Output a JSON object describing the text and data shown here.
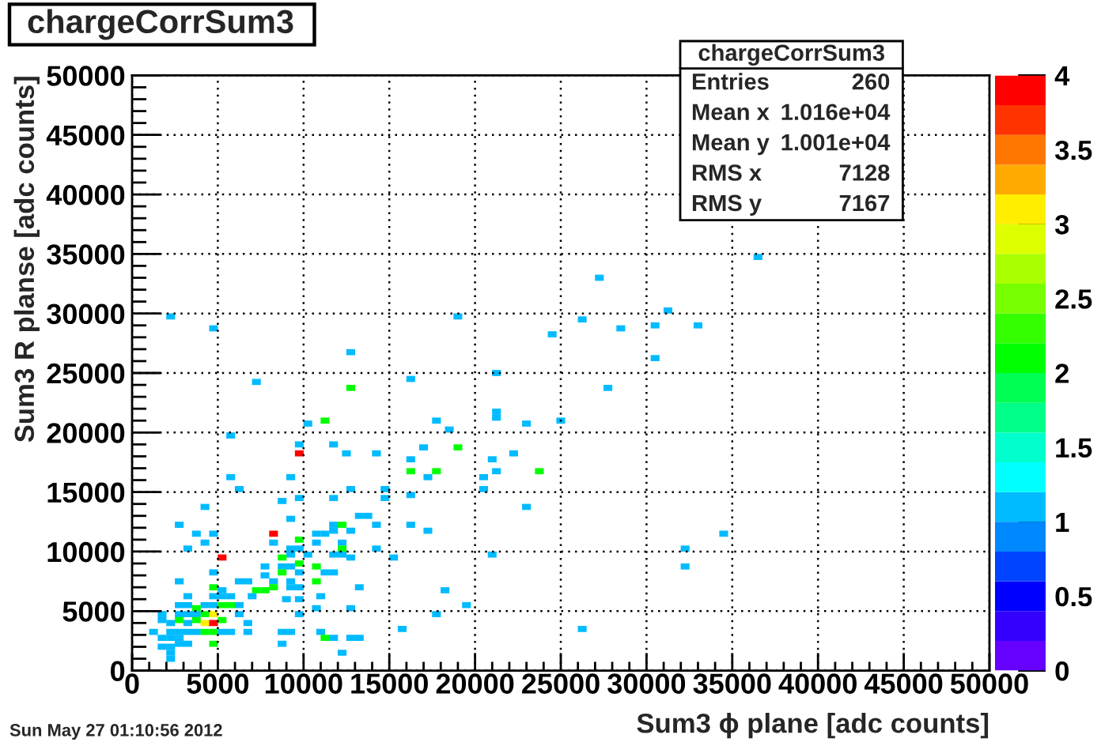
{
  "chart_data": {
    "type": "scatter",
    "title": "chargeCorrSum3",
    "xlabel": "Sum3 ϕ plane [adc counts]",
    "ylabel": "Sum3 R planse [adc counts]",
    "x": [
      2250,
      19000,
      4750,
      12750,
      7250,
      12750,
      16250,
      21250,
      21250,
      21250,
      11250,
      10250,
      17750,
      18500,
      23000,
      25000,
      27750,
      5750,
      9750,
      9750,
      11750,
      12500,
      14250,
      16250,
      17000,
      19000,
      21000,
      22250,
      16250,
      17750,
      17250,
      21250,
      20500,
      23750,
      5750,
      9250,
      6250,
      12750,
      14750,
      20500,
      23000,
      36500,
      27250,
      31250,
      26250,
      28500,
      30500,
      33000,
      24500,
      30500,
      21000,
      18250,
      19500,
      26250,
      32250,
      32250,
      34500,
      16250,
      9750,
      11750,
      14750,
      8750,
      4250,
      13250,
      13750,
      9250,
      2750,
      11750,
      12250,
      14250,
      16250,
      11750,
      12750,
      17250,
      3750,
      4750,
      8250,
      10750,
      11250,
      9750,
      4250,
      8250,
      10750,
      12250,
      3250,
      9250,
      9750,
      12250,
      14250,
      9250,
      10250,
      11750,
      12250,
      5250,
      8750,
      12750,
      15250,
      9750,
      7750,
      8750,
      9250,
      10750,
      4750,
      8750,
      9750,
      11250,
      11750,
      7750,
      2750,
      6250,
      6750,
      8250,
      9250,
      10750,
      4750,
      8250,
      9250,
      9750,
      13250,
      5250,
      7250,
      7750,
      3250,
      4750,
      5250,
      5750,
      7000,
      11000,
      9000,
      9750,
      2750,
      3250,
      4250,
      4750,
      5250,
      5750,
      6250,
      3750,
      10750,
      12750,
      1750,
      2750,
      3250,
      3750,
      4250,
      4750,
      6250,
      9750,
      17750,
      1750,
      2750,
      3750,
      5250,
      2250,
      3250,
      4250,
      4750,
      6750,
      15750,
      1250,
      2250,
      2750,
      3250,
      3750,
      4250,
      4750,
      5250,
      5750,
      6750,
      8750,
      9250,
      11000,
      1750,
      2250,
      2750,
      11250,
      11750,
      12750,
      13250,
      2750,
      3250,
      4750,
      8750,
      1750,
      2250,
      2250,
      12250,
      2250
    ],
    "values": [
      29750,
      29750,
      28750,
      26750,
      24250,
      23750,
      24500,
      25000,
      21250,
      21750,
      21000,
      20750,
      21000,
      20250,
      20750,
      21000,
      23750,
      19750,
      19000,
      18250,
      19000,
      18250,
      18250,
      17750,
      18750,
      18750,
      17750,
      18250,
      16750,
      16750,
      16250,
      16750,
      16250,
      16750,
      16250,
      16250,
      15250,
      15250,
      15250,
      15250,
      13750,
      34750,
      33000,
      30250,
      29500,
      28750,
      29000,
      29000,
      28250,
      26250,
      9750,
      6750,
      5500,
      3500,
      10250,
      8750,
      11500,
      14750,
      14500,
      14500,
      14500,
      14250,
      13750,
      13000,
      13000,
      12750,
      12250,
      12250,
      12250,
      12250,
      12250,
      11750,
      11750,
      11750,
      11500,
      11500,
      11500,
      11500,
      11500,
      11000,
      10750,
      10750,
      10750,
      10750,
      10250,
      10250,
      10250,
      10250,
      10250,
      9750,
      9750,
      9750,
      9750,
      9500,
      9500,
      9500,
      9500,
      9000,
      8750,
      8750,
      8750,
      8750,
      8250,
      8250,
      8250,
      8250,
      8250,
      8000,
      7500,
      7500,
      7500,
      7500,
      7500,
      7500,
      7000,
      7000,
      7000,
      7000,
      7000,
      6750,
      6750,
      6750,
      6250,
      6250,
      6250,
      6250,
      6250,
      6250,
      6000,
      6000,
      5500,
      5500,
      5500,
      5500,
      5500,
      5500,
      5500,
      5250,
      5250,
      5250,
      4750,
      4750,
      4750,
      4750,
      4750,
      4750,
      4750,
      4750,
      4750,
      4250,
      4250,
      4250,
      4250,
      4000,
      4000,
      4000,
      4000,
      4000,
      3500,
      3250,
      3250,
      3250,
      3250,
      3250,
      3250,
      3250,
      3250,
      3250,
      3250,
      3250,
      3250,
      3250,
      2750,
      2750,
      2750,
      2750,
      2750,
      2750,
      2750,
      2250,
      2250,
      2250,
      2250,
      2000,
      2000,
      1500,
      1500,
      1000
    ],
    "cvalues": [
      1,
      1,
      1,
      1,
      1,
      2,
      1,
      1,
      1,
      1,
      2,
      1,
      1,
      1,
      1,
      1,
      1,
      1,
      1,
      4,
      1,
      1,
      1,
      1,
      1,
      2,
      1,
      1,
      2,
      2,
      1,
      1,
      1,
      2,
      1,
      1,
      1,
      1,
      1,
      1,
      1,
      1,
      1,
      1,
      1,
      1,
      1,
      1,
      1,
      1,
      1,
      1,
      1,
      1,
      1,
      1,
      1,
      1,
      1,
      1,
      1,
      1,
      1,
      1,
      1,
      1,
      1,
      1,
      2,
      1,
      1,
      1,
      1,
      1,
      1,
      1,
      4,
      1,
      1,
      2,
      1,
      1,
      1,
      1,
      1,
      1,
      1,
      2,
      1,
      1,
      1,
      1,
      1,
      4,
      2,
      1,
      1,
      2,
      1,
      1,
      1,
      2,
      1,
      2,
      1,
      1,
      1,
      1,
      1,
      1,
      1,
      1,
      1,
      2,
      2,
      2,
      1,
      1,
      1,
      1,
      2,
      2,
      1,
      1,
      1,
      1,
      1,
      1,
      1,
      1,
      1,
      1,
      1,
      1,
      2,
      2,
      1,
      2,
      1,
      1,
      1,
      1,
      1,
      1,
      2,
      3,
      1,
      1,
      1,
      1,
      2,
      2,
      2,
      1,
      1,
      3,
      4,
      1,
      1,
      1,
      1,
      1,
      1,
      1,
      2,
      2,
      1,
      1,
      1,
      1,
      1,
      1,
      1,
      1,
      1,
      2,
      1,
      1,
      1,
      1,
      1,
      2,
      1,
      1,
      1,
      1,
      1,
      1
    ],
    "marker": "square",
    "grid": true,
    "clim": [
      0,
      4
    ],
    "cticks": [
      0,
      0.5,
      1,
      1.5,
      2,
      2.5,
      3,
      3.5,
      4
    ],
    "xlim": [
      0,
      50000
    ],
    "ylim": [
      0,
      50000
    ],
    "xticks": [
      0,
      {
        "value": 1000,
        "label": null
      },
      {
        "value": 2000,
        "label": null
      },
      {
        "value": 3000,
        "label": null
      },
      {
        "value": 4000,
        "label": null
      },
      5000,
      {
        "value": 6000,
        "label": null
      },
      {
        "value": 7000,
        "label": null
      },
      {
        "value": 8000,
        "label": null
      },
      {
        "value": 9000,
        "label": null
      },
      10000,
      {
        "value": 11000,
        "label": null
      },
      {
        "value": 12000,
        "label": null
      },
      {
        "value": 13000,
        "label": null
      },
      {
        "value": 14000,
        "label": null
      },
      15000,
      {
        "value": 16000,
        "label": null
      },
      {
        "value": 17000,
        "label": null
      },
      {
        "value": 18000,
        "label": null
      },
      {
        "value": 19000,
        "label": null
      },
      20000,
      {
        "value": 21000,
        "label": null
      },
      {
        "value": 22000,
        "label": null
      },
      {
        "value": 23000,
        "label": null
      },
      {
        "value": 24000,
        "label": null
      },
      25000,
      {
        "value": 26000,
        "label": null
      },
      {
        "value": 27000,
        "label": null
      },
      {
        "value": 28000,
        "label": null
      },
      {
        "value": 29000,
        "label": null
      },
      30000,
      {
        "value": 31000,
        "label": null
      },
      {
        "value": 32000,
        "label": null
      },
      {
        "value": 33000,
        "label": null
      },
      {
        "value": 34000,
        "label": null
      },
      35000,
      {
        "value": 36000,
        "label": null
      },
      {
        "value": 37000,
        "label": null
      },
      {
        "value": 38000,
        "label": null
      },
      {
        "value": 39000,
        "label": null
      },
      40000,
      {
        "value": 41000,
        "label": null
      },
      {
        "value": 42000,
        "label": null
      },
      {
        "value": 43000,
        "label": null
      },
      {
        "value": 44000,
        "label": null
      },
      45000,
      {
        "value": 46000,
        "label": null
      },
      {
        "value": 47000,
        "label": null
      },
      {
        "value": 48000,
        "label": null
      },
      {
        "value": 49000,
        "label": null
      },
      50000
    ],
    "yticks": [
      0,
      {
        "value": 1000,
        "label": null
      },
      {
        "value": 2000,
        "label": null
      },
      {
        "value": 3000,
        "label": null
      },
      {
        "value": 4000,
        "label": null
      },
      5000,
      {
        "value": 6000,
        "label": null
      },
      {
        "value": 7000,
        "label": null
      },
      {
        "value": 8000,
        "label": null
      },
      {
        "value": 9000,
        "label": null
      },
      10000,
      {
        "value": 11000,
        "label": null
      },
      {
        "value": 12000,
        "label": null
      },
      {
        "value": 13000,
        "label": null
      },
      {
        "value": 14000,
        "label": null
      },
      15000,
      {
        "value": 16000,
        "label": null
      },
      {
        "value": 17000,
        "label": null
      },
      {
        "value": 18000,
        "label": null
      },
      {
        "value": 19000,
        "label": null
      },
      20000,
      {
        "value": 21000,
        "label": null
      },
      {
        "value": 22000,
        "label": null
      },
      {
        "value": 23000,
        "label": null
      },
      {
        "value": 24000,
        "label": null
      },
      25000,
      {
        "value": 26000,
        "label": null
      },
      {
        "value": 27000,
        "label": null
      },
      {
        "value": 28000,
        "label": null
      },
      {
        "value": 29000,
        "label": null
      },
      30000,
      {
        "value": 31000,
        "label": null
      },
      {
        "value": 32000,
        "label": null
      },
      {
        "value": 33000,
        "label": null
      },
      {
        "value": 34000,
        "label": null
      },
      35000,
      {
        "value": 36000,
        "label": null
      },
      {
        "value": 37000,
        "label": null
      },
      {
        "value": 38000,
        "label": null
      },
      {
        "value": 39000,
        "label": null
      },
      40000,
      {
        "value": 41000,
        "label": null
      },
      {
        "value": 42000,
        "label": null
      },
      {
        "value": 43000,
        "label": null
      },
      {
        "value": 44000,
        "label": null
      },
      45000,
      {
        "value": 46000,
        "label": null
      },
      {
        "value": 47000,
        "label": null
      },
      {
        "value": 48000,
        "label": null
      },
      {
        "value": 49000,
        "label": null
      },
      50000
    ],
    "annotations": [
      "chargeCorrSum3",
      "Entries 260",
      "Mean x 1.016e+04",
      "Mean y 1.001e+04",
      "RMS x 7128",
      "RMS y 7167",
      "Sun May 27 01:10:56 2012"
    ]
  }
}
